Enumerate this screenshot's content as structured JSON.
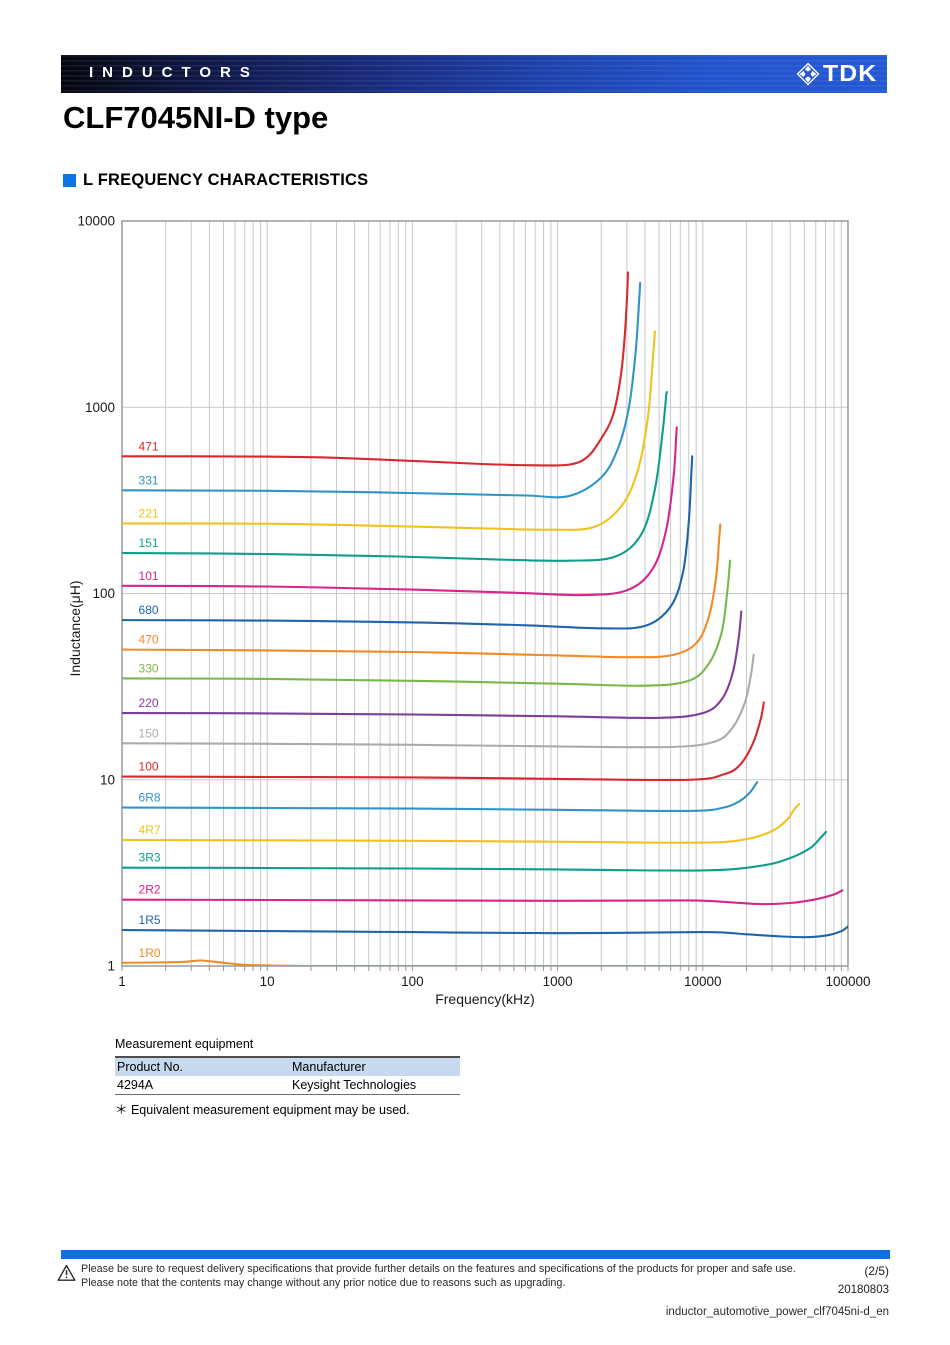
{
  "header": {
    "category": "INDUCTORS",
    "brand": "TDK"
  },
  "title": "CLF7045NI-D type",
  "section": {
    "title": "L FREQUENCY CHARACTERISTICS"
  },
  "chart_data": {
    "type": "line",
    "title": "",
    "xlabel": "Frequency(kHz)",
    "ylabel": "Inductance(μH)",
    "xscale": "log",
    "yscale": "log",
    "xlim": [
      1,
      100000
    ],
    "ylim": [
      1,
      10000
    ],
    "x_ticks": [
      "1",
      "10",
      "100",
      "1000",
      "10000",
      "100000"
    ],
    "y_ticks": [
      "1",
      "10",
      "100",
      "1000",
      "10000"
    ],
    "x_minor_grid": true,
    "y_minor_grid": false,
    "legend_position": "inline-left-labels",
    "series": [
      {
        "name": "471",
        "color": "#d7282f",
        "points": [
          [
            1,
            545
          ],
          [
            3,
            545
          ],
          [
            10,
            543
          ],
          [
            30,
            535
          ],
          [
            100,
            515
          ],
          [
            300,
            496
          ],
          [
            700,
            488
          ],
          [
            1200,
            492
          ],
          [
            1600,
            540
          ],
          [
            2000,
            680
          ],
          [
            2400,
            900
          ],
          [
            2700,
            1400
          ],
          [
            2900,
            2400
          ],
          [
            3020,
            4200
          ],
          [
            3050,
            5300
          ]
        ]
      },
      {
        "name": "331",
        "color": "#3094c8",
        "points": [
          [
            1,
            358
          ],
          [
            10,
            356
          ],
          [
            50,
            350
          ],
          [
            200,
            342
          ],
          [
            600,
            336
          ],
          [
            1200,
            334
          ],
          [
            2000,
            420
          ],
          [
            2600,
            600
          ],
          [
            3100,
            1000
          ],
          [
            3450,
            2000
          ],
          [
            3650,
            3800
          ],
          [
            3700,
            4650
          ]
        ]
      },
      {
        "name": "221",
        "color": "#f0c31c",
        "points": [
          [
            1,
            238
          ],
          [
            10,
            237
          ],
          [
            60,
            231
          ],
          [
            300,
            224
          ],
          [
            900,
            220
          ],
          [
            1800,
            228
          ],
          [
            2800,
            300
          ],
          [
            3600,
            470
          ],
          [
            4200,
            900
          ],
          [
            4550,
            1900
          ],
          [
            4680,
            2550
          ]
        ]
      },
      {
        "name": "151",
        "color": "#0f9e8e",
        "points": [
          [
            1,
            165
          ],
          [
            10,
            163
          ],
          [
            80,
            158
          ],
          [
            400,
            152
          ],
          [
            1200,
            150
          ],
          [
            2500,
            158
          ],
          [
            3800,
            210
          ],
          [
            4700,
            370
          ],
          [
            5300,
            750
          ],
          [
            5600,
            1150
          ],
          [
            5660,
            1200
          ]
        ]
      },
      {
        "name": "101",
        "color": "#d6258c",
        "points": [
          [
            1,
            110
          ],
          [
            10,
            109
          ],
          [
            100,
            105
          ],
          [
            500,
            101
          ],
          [
            1500,
            98
          ],
          [
            3000,
            104
          ],
          [
            4500,
            135
          ],
          [
            5600,
            220
          ],
          [
            6300,
            430
          ],
          [
            6560,
            700
          ],
          [
            6620,
            780
          ]
        ]
      },
      {
        "name": "680",
        "color": "#1f64ad",
        "points": [
          [
            1,
            72
          ],
          [
            10,
            71.5
          ],
          [
            100,
            70
          ],
          [
            600,
            67.5
          ],
          [
            2000,
            65
          ],
          [
            4000,
            67
          ],
          [
            6000,
            85
          ],
          [
            7300,
            130
          ],
          [
            8000,
            240
          ],
          [
            8350,
            450
          ],
          [
            8450,
            545
          ]
        ]
      },
      {
        "name": "470",
        "color": "#f08c28",
        "points": [
          [
            1,
            50
          ],
          [
            10,
            49.5
          ],
          [
            100,
            48.5
          ],
          [
            1000,
            46.5
          ],
          [
            3000,
            45.5
          ],
          [
            6000,
            46.5
          ],
          [
            9000,
            54
          ],
          [
            11000,
            75
          ],
          [
            12300,
            120
          ],
          [
            13000,
            200
          ],
          [
            13200,
            235
          ]
        ]
      },
      {
        "name": "330",
        "color": "#78b84a",
        "points": [
          [
            1,
            35
          ],
          [
            10,
            34.8
          ],
          [
            100,
            34
          ],
          [
            1000,
            32.8
          ],
          [
            4000,
            32
          ],
          [
            8000,
            34
          ],
          [
            11000,
            42
          ],
          [
            13500,
            62
          ],
          [
            14800,
            105
          ],
          [
            15400,
            150
          ]
        ]
      },
      {
        "name": "220",
        "color": "#7e3d97",
        "points": [
          [
            1,
            22.8
          ],
          [
            10,
            22.7
          ],
          [
            100,
            22.4
          ],
          [
            1000,
            21.9
          ],
          [
            5000,
            21.5
          ],
          [
            10000,
            22.8
          ],
          [
            13500,
            27
          ],
          [
            16000,
            37
          ],
          [
            17600,
            56
          ],
          [
            18400,
            80
          ]
        ]
      },
      {
        "name": "150",
        "color": "#ababab",
        "points": [
          [
            1,
            15.7
          ],
          [
            10,
            15.6
          ],
          [
            100,
            15.4
          ],
          [
            1000,
            15.1
          ],
          [
            6000,
            15
          ],
          [
            12000,
            16
          ],
          [
            16000,
            19
          ],
          [
            19500,
            26
          ],
          [
            21500,
            37
          ],
          [
            22400,
            47
          ]
        ]
      },
      {
        "name": "100",
        "color": "#d7282f",
        "points": [
          [
            1,
            10.4
          ],
          [
            10,
            10.35
          ],
          [
            100,
            10.3
          ],
          [
            1000,
            10.1
          ],
          [
            8000,
            10
          ],
          [
            14000,
            10.7
          ],
          [
            18000,
            12
          ],
          [
            22000,
            15.5
          ],
          [
            25000,
            21
          ],
          [
            26300,
            26
          ]
        ]
      },
      {
        "name": "6R8",
        "color": "#3094c8",
        "points": [
          [
            1,
            7.1
          ],
          [
            10,
            7.05
          ],
          [
            100,
            7.0
          ],
          [
            1000,
            6.9
          ],
          [
            8000,
            6.8
          ],
          [
            14000,
            7.1
          ],
          [
            18000,
            7.7
          ],
          [
            21000,
            8.5
          ],
          [
            23000,
            9.4
          ],
          [
            23700,
            9.7
          ]
        ]
      },
      {
        "name": "4R7",
        "color": "#f0c31c",
        "points": [
          [
            1,
            4.75
          ],
          [
            10,
            4.73
          ],
          [
            100,
            4.7
          ],
          [
            1000,
            4.65
          ],
          [
            10000,
            4.6
          ],
          [
            20000,
            4.8
          ],
          [
            30000,
            5.3
          ],
          [
            38000,
            6.1
          ],
          [
            43000,
            7.0
          ],
          [
            46000,
            7.4
          ]
        ]
      },
      {
        "name": "3R3",
        "color": "#0f9e8e",
        "points": [
          [
            1,
            3.37
          ],
          [
            10,
            3.36
          ],
          [
            100,
            3.34
          ],
          [
            1000,
            3.3
          ],
          [
            10000,
            3.26
          ],
          [
            25000,
            3.45
          ],
          [
            40000,
            3.8
          ],
          [
            55000,
            4.3
          ],
          [
            65000,
            4.9
          ],
          [
            70500,
            5.25
          ]
        ]
      },
      {
        "name": "2R2",
        "color": "#d6258c",
        "points": [
          [
            1,
            2.27
          ],
          [
            10,
            2.26
          ],
          [
            100,
            2.25
          ],
          [
            1000,
            2.24
          ],
          [
            8000,
            2.25
          ],
          [
            15000,
            2.2
          ],
          [
            25000,
            2.15
          ],
          [
            40000,
            2.18
          ],
          [
            60000,
            2.28
          ],
          [
            80000,
            2.42
          ],
          [
            91500,
            2.55
          ]
        ]
      },
      {
        "name": "1R5",
        "color": "#1f64ad",
        "points": [
          [
            1,
            1.56
          ],
          [
            10,
            1.54
          ],
          [
            100,
            1.52
          ],
          [
            1000,
            1.5
          ],
          [
            10000,
            1.52
          ],
          [
            20000,
            1.48
          ],
          [
            35000,
            1.44
          ],
          [
            55000,
            1.43
          ],
          [
            75000,
            1.47
          ],
          [
            90000,
            1.54
          ],
          [
            100000,
            1.63
          ]
        ]
      },
      {
        "name": "1R0",
        "color": "#f08c28",
        "points": [
          [
            1,
            1.04
          ],
          [
            2.5,
            1.05
          ],
          [
            3.5,
            1.07
          ],
          [
            5,
            1.04
          ],
          [
            8,
            1.01
          ],
          [
            20,
            1.0
          ],
          [
            100,
            1.0
          ],
          [
            1000,
            1.0
          ],
          [
            6000,
            1.0
          ],
          [
            13000,
            1.0
          ]
        ]
      }
    ]
  },
  "equipment": {
    "title": "Measurement equipment",
    "columns": [
      "Product No.",
      "Manufacturer"
    ],
    "rows": [
      [
        "4294A",
        "Keysight Technologies"
      ]
    ],
    "note": "＊ Equivalent measurement equipment may be used."
  },
  "footer": {
    "notice_line1": "Please be sure to request delivery specifications that provide further details on the features and specifications of the products for proper and safe use.",
    "notice_line2": "Please note that the contents may change without any prior notice due to reasons such as upgrading.",
    "page": "(2/5)",
    "date": "20180803",
    "doc_id": "inductor_automotive_power_clf7045ni-d_en"
  },
  "colors": {
    "band_blue": "#2458d4",
    "accent_blue": "#0b74e8",
    "footer_bar_blue": "#0e6fe4",
    "table_header_bg": "#c6d9ee"
  }
}
